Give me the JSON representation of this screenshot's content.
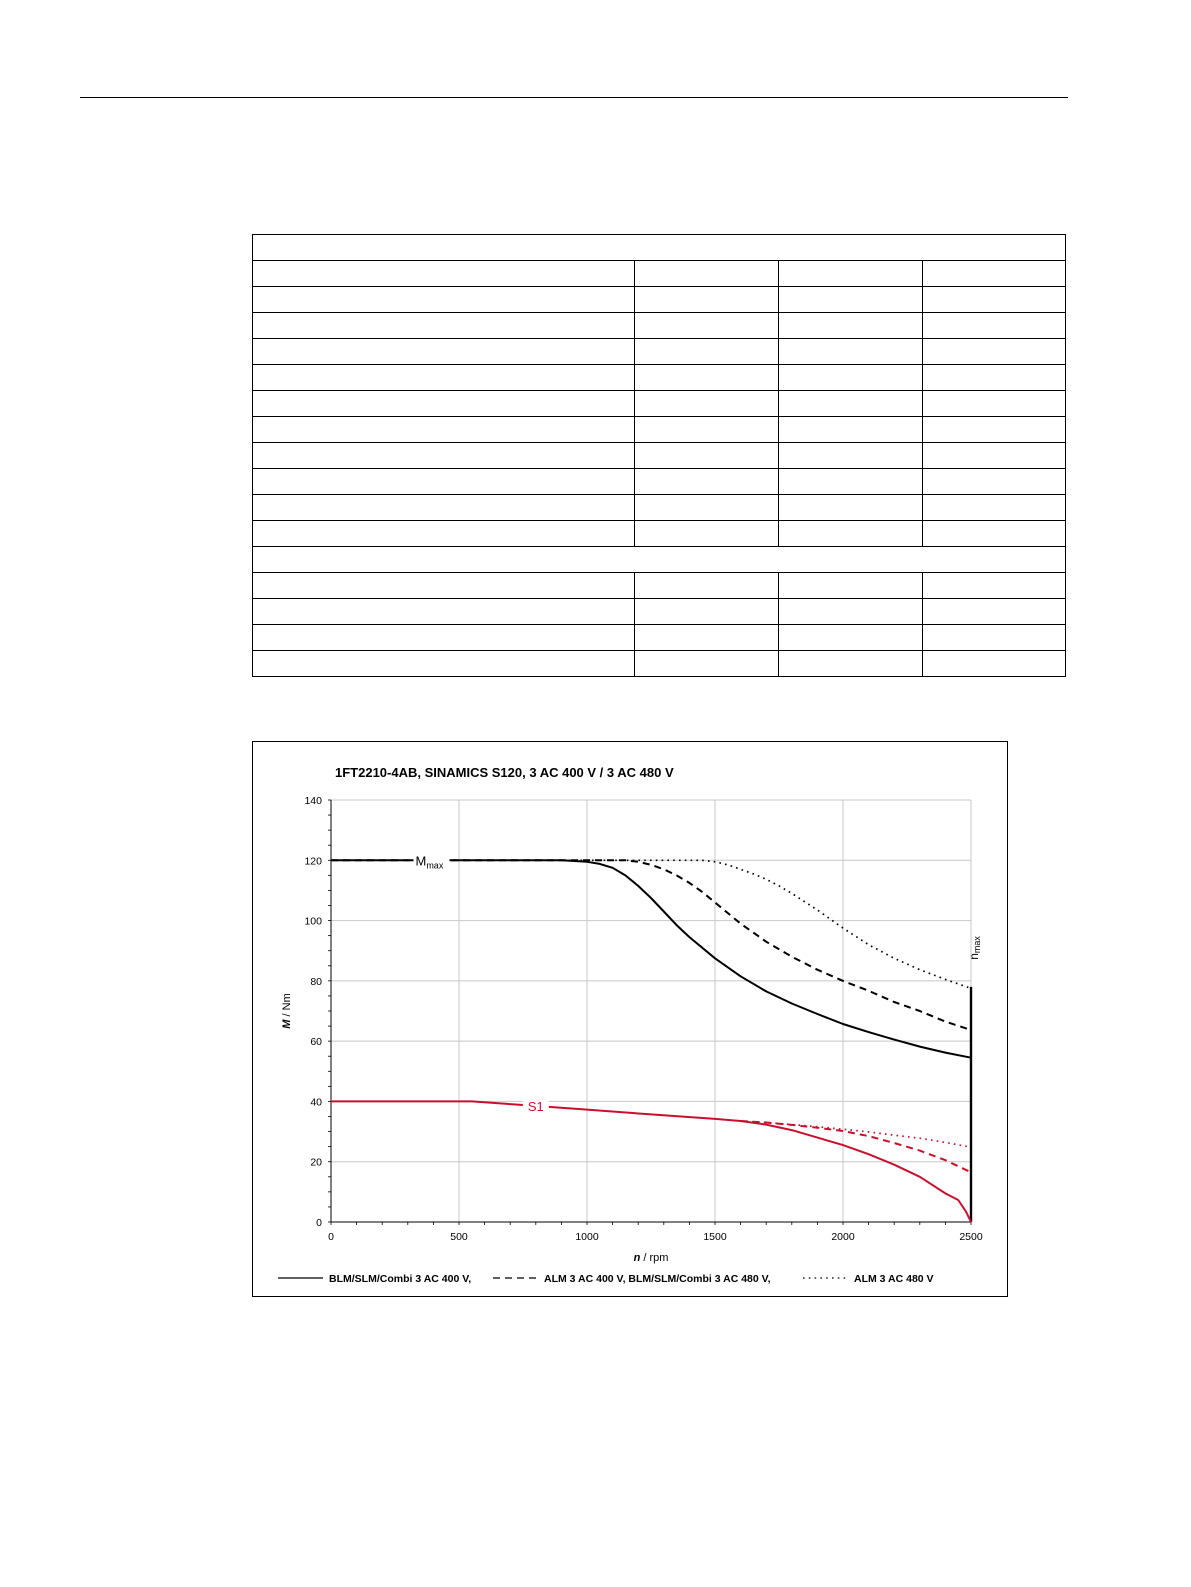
{
  "table": {
    "rows": [
      {
        "type": "full",
        "cells": [
          ""
        ]
      },
      {
        "type": "split",
        "cells": [
          "",
          "",
          "",
          ""
        ]
      },
      {
        "type": "split",
        "cells": [
          "",
          "",
          "",
          ""
        ]
      },
      {
        "type": "split",
        "cells": [
          "",
          "",
          "",
          ""
        ]
      },
      {
        "type": "split",
        "cells": [
          "",
          "",
          "",
          ""
        ]
      },
      {
        "type": "split",
        "cells": [
          "",
          "",
          "",
          ""
        ]
      },
      {
        "type": "split",
        "cells": [
          "",
          "",
          "",
          ""
        ]
      },
      {
        "type": "split",
        "cells": [
          "",
          "",
          "",
          ""
        ]
      },
      {
        "type": "split",
        "cells": [
          "",
          "",
          "",
          ""
        ]
      },
      {
        "type": "split",
        "cells": [
          "",
          "",
          "",
          ""
        ]
      },
      {
        "type": "split",
        "cells": [
          "",
          "",
          "",
          ""
        ]
      },
      {
        "type": "split",
        "cells": [
          "",
          "",
          "",
          ""
        ]
      },
      {
        "type": "full",
        "cells": [
          ""
        ]
      },
      {
        "type": "split",
        "cells": [
          "",
          "",
          "",
          ""
        ]
      },
      {
        "type": "split",
        "cells": [
          "",
          "",
          "",
          ""
        ]
      },
      {
        "type": "split",
        "cells": [
          "",
          "",
          "",
          ""
        ]
      },
      {
        "type": "split",
        "cells": [
          "",
          "",
          "",
          ""
        ]
      }
    ]
  },
  "chart_data": {
    "type": "line",
    "title": "1FT2210-4AB,  SINAMICS S120,  3 AC 400 V / 3 AC 480 V",
    "xlabel_italic": "n",
    "xlabel_unit": " / rpm",
    "ylabel_italic": "M",
    "ylabel_unit": " / Nm",
    "xlim": [
      0,
      2500
    ],
    "ylim": [
      0,
      140
    ],
    "xticks": [
      0,
      500,
      1000,
      1500,
      2000,
      2500
    ],
    "yticks": [
      0,
      20,
      40,
      60,
      80,
      100,
      120,
      140
    ],
    "grid": true,
    "colors": {
      "black": "#000000",
      "red": "#c8102e",
      "grid": "#c8c8c8"
    },
    "annotations": {
      "mmax": {
        "main": "M",
        "sub": "max",
        "x": 330,
        "y": 120
      },
      "s1": {
        "text": "S1",
        "x": 800,
        "y": 38.5
      },
      "nmax": {
        "main": "n",
        "sub": "max",
        "x": 2500,
        "y": 87
      }
    },
    "nmax_line": {
      "x": 2500,
      "y_from": 0,
      "y_to": 78
    },
    "series": [
      {
        "group": "Mmax",
        "style": "solid",
        "color": "black",
        "x": [
          0,
          900,
          1000,
          1050,
          1100,
          1150,
          1200,
          1250,
          1300,
          1350,
          1400,
          1500,
          1600,
          1700,
          1800,
          1900,
          2000,
          2100,
          2200,
          2300,
          2400,
          2500
        ],
        "y": [
          120,
          120,
          119.5,
          118.8,
          117.5,
          115,
          111.5,
          107.5,
          103,
          98.5,
          94.5,
          87.5,
          81.5,
          76.5,
          72.5,
          69,
          65.7,
          63,
          60.5,
          58.2,
          56.2,
          54.5
        ]
      },
      {
        "group": "Mmax",
        "style": "dashed",
        "color": "black",
        "x": [
          0,
          1150,
          1200,
          1250,
          1300,
          1350,
          1400,
          1450,
          1500,
          1600,
          1700,
          1800,
          1900,
          2000,
          2100,
          2200,
          2300,
          2400,
          2500
        ],
        "y": [
          120,
          120,
          119.5,
          118.5,
          117,
          115,
          112.5,
          109.5,
          106,
          99,
          93,
          88,
          83.7,
          80,
          76.7,
          73,
          70,
          66.5,
          63.7
        ]
      },
      {
        "group": "Mmax",
        "style": "dotted",
        "color": "black",
        "x": [
          0,
          1450,
          1500,
          1550,
          1600,
          1650,
          1700,
          1750,
          1800,
          1900,
          2000,
          2100,
          2200,
          2300,
          2400,
          2500
        ],
        "y": [
          120,
          120,
          119.5,
          118.5,
          117,
          115.5,
          113.7,
          111.5,
          109,
          103.5,
          97.5,
          92,
          87.5,
          83.7,
          80.5,
          77.5
        ]
      },
      {
        "group": "S1",
        "style": "solid",
        "color": "red",
        "x": [
          0,
          550,
          750,
          1000,
          1250,
          1500,
          1600,
          1700,
          1800,
          1900,
          2000,
          2100,
          2200,
          2300,
          2400,
          2450,
          2480,
          2500
        ],
        "y": [
          40,
          40,
          38.8,
          37.3,
          35.7,
          34.2,
          33.5,
          32.3,
          30.5,
          28,
          25.5,
          22.5,
          19,
          15,
          9.5,
          7.3,
          3.5,
          0
        ]
      },
      {
        "group": "S1",
        "style": "dashed",
        "color": "red",
        "x": [
          1600,
          1700,
          1800,
          1900,
          2000,
          2100,
          2200,
          2300,
          2400,
          2500
        ],
        "y": [
          33.5,
          33,
          32.2,
          31.3,
          30.2,
          28.5,
          26.2,
          23.7,
          20.5,
          16.5
        ]
      },
      {
        "group": "S1",
        "style": "dotted",
        "color": "red",
        "x": [
          1600,
          1700,
          1800,
          1900,
          2000,
          2100,
          2200,
          2300,
          2400,
          2500
        ],
        "y": [
          33.5,
          33,
          32.3,
          31.6,
          30.8,
          29.9,
          28.8,
          27.8,
          26.4,
          24.8
        ]
      }
    ],
    "legend": {
      "placement": "bottom",
      "entries": [
        {
          "style": "solid",
          "label": "BLM/SLM/Combi 3 AC 400 V,"
        },
        {
          "style": "dashed",
          "label": "ALM 3 AC 400 V, BLM/SLM/Combi 3 AC 480 V,"
        },
        {
          "style": "dotted",
          "label": "ALM 3 AC 480 V"
        }
      ]
    }
  }
}
